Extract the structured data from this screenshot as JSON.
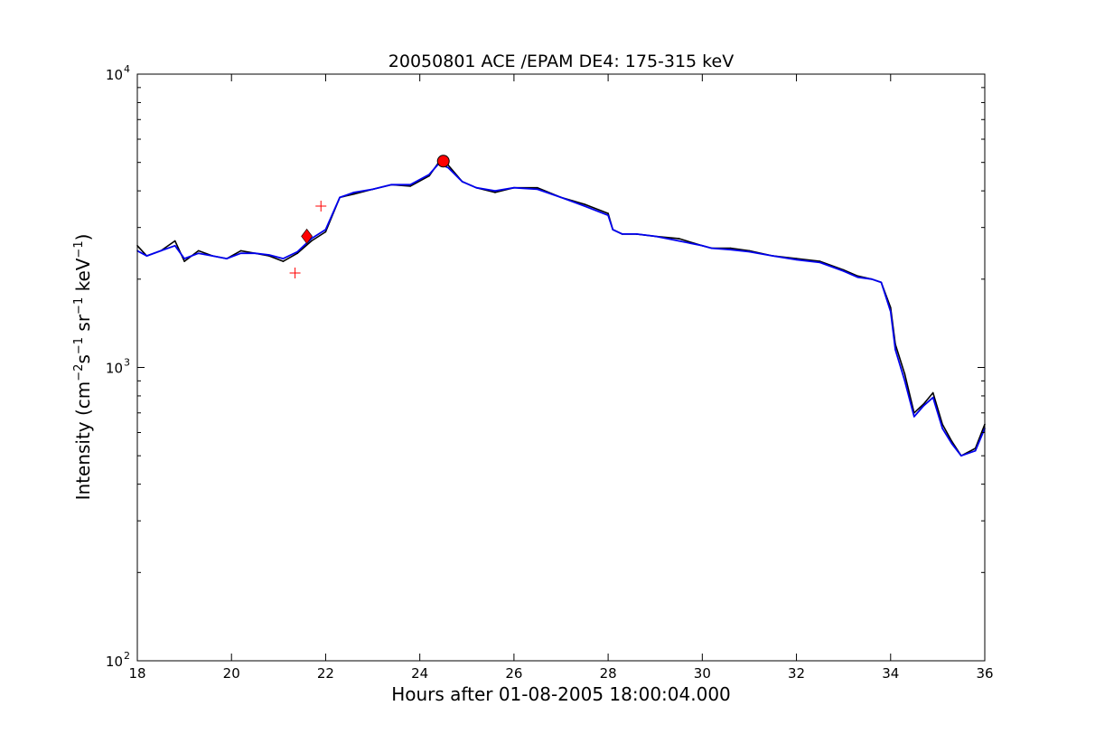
{
  "chart_data": {
    "type": "line",
    "title": "20050801 ACE /EPAM DE4: 175-315 keV",
    "xlabel": "Hours after 01-08-2005 18:00:04.000",
    "ylabel": {
      "prefix": "Intensity (cm",
      "sup1": "−2",
      "mid1": "s",
      "sup2": "−1",
      "mid2": " sr",
      "sup3": "−1",
      "mid3": " keV",
      "sup4": "−1",
      "suffix": ")"
    },
    "xlim": [
      18,
      36
    ],
    "ylim": [
      100,
      10000
    ],
    "yscale": "log",
    "grid": false,
    "x_ticks": [
      18,
      20,
      22,
      24,
      26,
      28,
      30,
      32,
      34,
      36
    ],
    "y_ticks": [
      {
        "value": 100,
        "base": "10",
        "exp": "2"
      },
      {
        "value": 1000,
        "base": "10",
        "exp": "3"
      },
      {
        "value": 10000,
        "base": "10",
        "exp": "4"
      }
    ],
    "series": [
      {
        "style": "raw",
        "color": "#000000",
        "x": [
          18.0,
          18.2,
          18.5,
          18.8,
          19.0,
          19.3,
          19.6,
          19.9,
          20.2,
          20.5,
          20.8,
          21.1,
          21.4,
          21.7,
          22.0,
          22.3,
          22.6,
          23.0,
          23.4,
          23.8,
          24.2,
          24.4,
          24.6,
          24.9,
          25.2,
          25.6,
          26.0,
          26.5,
          27.0,
          27.5,
          28.0,
          28.1,
          28.3,
          28.6,
          29.0,
          29.5,
          30.0,
          30.2,
          30.6,
          31.0,
          31.5,
          32.0,
          32.5,
          33.0,
          33.3,
          33.6,
          33.8,
          34.0,
          34.1,
          34.3,
          34.5,
          34.7,
          34.9,
          35.1,
          35.3,
          35.5,
          35.8,
          36.0
        ],
        "y": [
          2600,
          2400,
          2500,
          2700,
          2300,
          2500,
          2400,
          2350,
          2500,
          2450,
          2400,
          2300,
          2450,
          2700,
          2900,
          3800,
          3900,
          4050,
          4200,
          4150,
          4500,
          5000,
          4900,
          4300,
          4100,
          3950,
          4100,
          4100,
          3800,
          3600,
          3350,
          2950,
          2850,
          2850,
          2800,
          2750,
          2600,
          2550,
          2550,
          2500,
          2400,
          2350,
          2300,
          2150,
          2050,
          2000,
          1950,
          1600,
          1200,
          950,
          700,
          750,
          820,
          640,
          560,
          500,
          530,
          640
        ]
      },
      {
        "style": "smoothed",
        "color": "#0000ee",
        "x": [
          18.0,
          18.2,
          18.5,
          18.8,
          19.0,
          19.3,
          19.6,
          19.9,
          20.2,
          20.5,
          20.8,
          21.1,
          21.4,
          21.7,
          22.0,
          22.3,
          22.6,
          23.0,
          23.4,
          23.8,
          24.2,
          24.4,
          24.6,
          24.9,
          25.2,
          25.6,
          26.0,
          26.5,
          27.0,
          27.5,
          28.0,
          28.1,
          28.3,
          28.6,
          29.0,
          29.5,
          30.0,
          30.2,
          30.6,
          31.0,
          31.5,
          32.0,
          32.5,
          33.0,
          33.3,
          33.6,
          33.8,
          34.0,
          34.1,
          34.3,
          34.5,
          34.7,
          34.9,
          35.1,
          35.3,
          35.5,
          35.8,
          36.0
        ],
        "y": [
          2500,
          2400,
          2500,
          2600,
          2350,
          2450,
          2400,
          2350,
          2450,
          2450,
          2420,
          2350,
          2480,
          2750,
          2950,
          3800,
          3950,
          4050,
          4200,
          4200,
          4550,
          4950,
          4800,
          4300,
          4100,
          4000,
          4100,
          4050,
          3800,
          3550,
          3300,
          2950,
          2850,
          2850,
          2800,
          2700,
          2600,
          2550,
          2520,
          2480,
          2400,
          2330,
          2280,
          2130,
          2030,
          2000,
          1950,
          1550,
          1150,
          900,
          680,
          740,
          790,
          620,
          550,
          500,
          520,
          620
        ]
      }
    ],
    "markers": [
      {
        "shape": "diamond",
        "color": "#ff0000",
        "x": 21.6,
        "y": 2800
      },
      {
        "shape": "circle",
        "color": "#ff0000",
        "x": 24.5,
        "y": 5050
      },
      {
        "shape": "plus",
        "color": "#ff0000",
        "x": 21.35,
        "y": 2100
      },
      {
        "shape": "plus",
        "color": "#ff0000",
        "x": 21.9,
        "y": 3550
      }
    ]
  }
}
